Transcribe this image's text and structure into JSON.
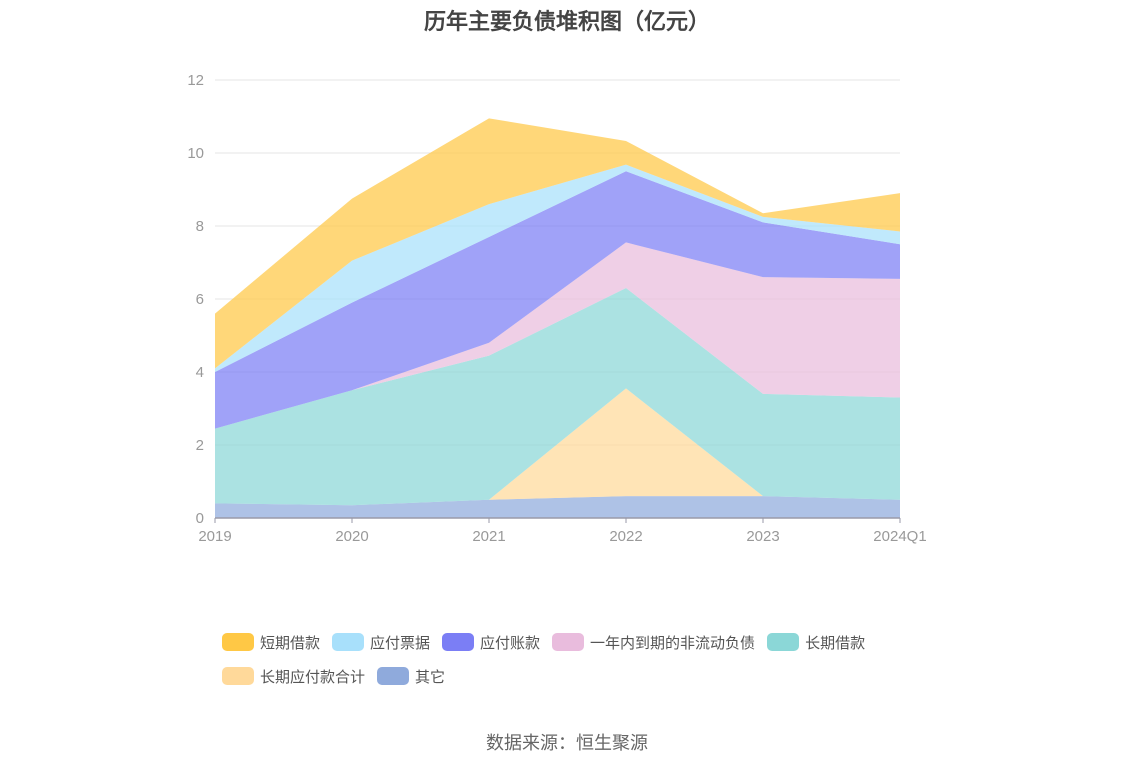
{
  "chart_data": {
    "type": "area",
    "title": "历年主要负债堆积图（亿元）",
    "stacked": true,
    "categories": [
      "2019",
      "2020",
      "2021",
      "2022",
      "2023",
      "2024Q1"
    ],
    "ylim": [
      0,
      12
    ],
    "yticks": [
      "0",
      "2",
      "4",
      "6",
      "8",
      "10",
      "12"
    ],
    "grid": true,
    "legend_position": "bottom",
    "series": [
      {
        "name": "短期借款",
        "color": "#FFC845",
        "values": [
          1.5,
          1.7,
          2.35,
          0.65,
          0.1,
          1.05
        ]
      },
      {
        "name": "应付票据",
        "color": "#A8E0FB",
        "values": [
          0.1,
          1.15,
          0.9,
          0.18,
          0.15,
          0.35
        ]
      },
      {
        "name": "应付账款",
        "color": "#7B7EF5",
        "values": [
          1.55,
          2.4,
          2.9,
          1.95,
          1.5,
          0.95
        ]
      },
      {
        "name": "一年内到期的非流动负债",
        "color": "#E9BCDD",
        "values": [
          0.0,
          0.0,
          0.35,
          1.25,
          3.2,
          3.25
        ]
      },
      {
        "name": "长期借款",
        "color": "#8BD7D7",
        "values": [
          2.05,
          3.15,
          3.95,
          2.75,
          2.8,
          2.8
        ]
      },
      {
        "name": "长期应付款合计",
        "color": "#FFD99A",
        "values": [
          0.0,
          0.0,
          0.0,
          2.95,
          0.0,
          0.0
        ]
      },
      {
        "name": "其它",
        "color": "#8FAADC",
        "values": [
          0.4,
          0.35,
          0.5,
          0.6,
          0.6,
          0.5
        ]
      }
    ]
  },
  "source": "数据来源：恒生聚源"
}
